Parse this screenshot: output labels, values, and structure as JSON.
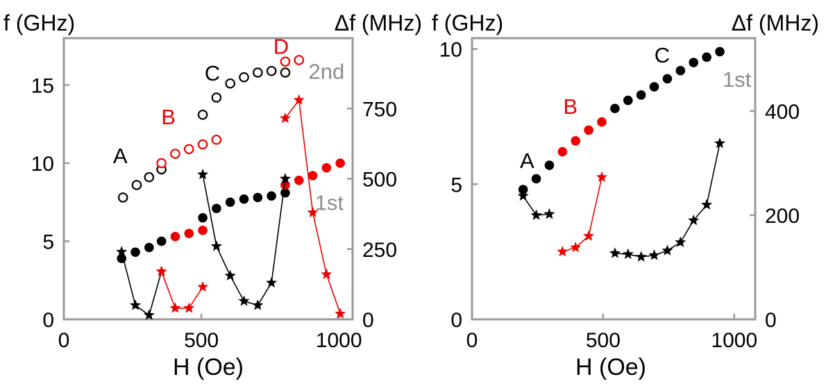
{
  "chart_data": [
    {
      "type": "scatter",
      "title": "",
      "xlabel": "H (Oe)",
      "ylabel_left": "f (GHz)",
      "ylabel_right": "Δf (MHz)",
      "xlim": [
        0,
        1050
      ],
      "ylim_left": [
        0,
        18
      ],
      "ylim_right": [
        0,
        1000
      ],
      "x_ticks": [
        0,
        500,
        1000
      ],
      "y_ticks_left": [
        0,
        5,
        10,
        15
      ],
      "y_ticks_right": [
        0,
        250,
        500,
        750
      ],
      "grid": false,
      "annotations": [
        {
          "text": "A",
          "x": 205,
          "y": 10.0,
          "color": "#000000",
          "axis": "left"
        },
        {
          "text": "B",
          "x": 380,
          "y": 12.5,
          "color": "#ee0000",
          "axis": "left"
        },
        {
          "text": "C",
          "x": 540,
          "y": 15.3,
          "color": "#000000",
          "axis": "left"
        },
        {
          "text": "D",
          "x": 790,
          "y": 17.0,
          "color": "#ee0000",
          "axis": "left"
        },
        {
          "text": "2nd",
          "x": 955,
          "y": 15.4,
          "color": "#8c8c8c",
          "axis": "left"
        },
        {
          "text": "1st",
          "x": 965,
          "y": 7.0,
          "color": "#8c8c8c",
          "axis": "left"
        }
      ],
      "series": [
        {
          "axis": "left",
          "marker": "circle-open",
          "color": "#000000",
          "x": [
            215,
            265,
            310,
            355
          ],
          "y": [
            7.8,
            8.6,
            9.1,
            9.6
          ]
        },
        {
          "axis": "left",
          "marker": "circle-open",
          "color": "#ee0000",
          "x": [
            355,
            405,
            455,
            505,
            555
          ],
          "y": [
            10.0,
            10.6,
            10.9,
            11.2,
            11.5
          ]
        },
        {
          "axis": "left",
          "marker": "circle-open",
          "color": "#000000",
          "x": [
            505,
            555,
            605,
            655,
            705,
            755,
            805
          ],
          "y": [
            13.1,
            14.2,
            15.1,
            15.5,
            15.8,
            15.9,
            15.8
          ]
        },
        {
          "axis": "left",
          "marker": "circle-open",
          "color": "#ee0000",
          "x": [
            805,
            855
          ],
          "y": [
            16.5,
            16.6
          ]
        },
        {
          "axis": "left",
          "marker": "circle-filled",
          "color": "#000000",
          "x": [
            210,
            260,
            310,
            355
          ],
          "y": [
            3.9,
            4.3,
            4.6,
            5.0
          ]
        },
        {
          "axis": "left",
          "marker": "circle-filled",
          "color": "#ee0000",
          "x": [
            405,
            455,
            505
          ],
          "y": [
            5.3,
            5.5,
            5.7
          ]
        },
        {
          "axis": "left",
          "marker": "circle-filled",
          "color": "#000000",
          "x": [
            505,
            555,
            605,
            655,
            705,
            755,
            805
          ],
          "y": [
            6.5,
            7.1,
            7.5,
            7.7,
            7.8,
            7.9,
            8.1
          ]
        },
        {
          "axis": "left",
          "marker": "circle-filled",
          "color": "#ee0000",
          "x": [
            805,
            855,
            905,
            955,
            1005
          ],
          "y": [
            8.6,
            8.9,
            9.2,
            9.7,
            10.0
          ]
        },
        {
          "axis": "right",
          "marker": "star-line",
          "color": "#000000",
          "x": [
            210,
            260,
            310,
            355
          ],
          "y": [
            240,
            50,
            15,
            170
          ]
        },
        {
          "axis": "right",
          "marker": "star-line",
          "color": "#ee0000",
          "x": [
            355,
            405,
            455,
            505
          ],
          "y": [
            170,
            40,
            40,
            115
          ]
        },
        {
          "axis": "right",
          "marker": "star-line",
          "color": "#000000",
          "x": [
            505,
            555,
            605,
            655,
            705,
            755,
            805
          ],
          "y": [
            515,
            260,
            155,
            65,
            50,
            130,
            500
          ]
        },
        {
          "axis": "right",
          "marker": "star-line",
          "color": "#ee0000",
          "x": [
            805,
            855,
            905,
            955,
            1005
          ],
          "y": [
            715,
            780,
            380,
            160,
            20
          ]
        }
      ]
    },
    {
      "type": "scatter",
      "title": "",
      "xlabel": "H (Oe)",
      "ylabel_left": "f (GHz)",
      "ylabel_right": "Δf (MHz)",
      "xlim": [
        0,
        1080
      ],
      "ylim_left": [
        0,
        10.4
      ],
      "ylim_right": [
        0,
        540
      ],
      "x_ticks": [
        0,
        500,
        1000
      ],
      "y_ticks_left": [
        0,
        5,
        10
      ],
      "y_ticks_right": [
        0,
        200,
        400
      ],
      "grid": false,
      "annotations": [
        {
          "text": "A",
          "x": 210,
          "y": 5.6,
          "color": "#000000",
          "axis": "left"
        },
        {
          "text": "B",
          "x": 375,
          "y": 7.6,
          "color": "#ee0000",
          "axis": "left"
        },
        {
          "text": "C",
          "x": 725,
          "y": 9.5,
          "color": "#000000",
          "axis": "left"
        },
        {
          "text": "1st",
          "x": 1010,
          "y": 8.6,
          "color": "#8c8c8c",
          "axis": "left"
        }
      ],
      "series": [
        {
          "axis": "left",
          "marker": "circle-filled",
          "color": "#000000",
          "x": [
            195,
            245,
            295
          ],
          "y": [
            4.8,
            5.2,
            5.7
          ]
        },
        {
          "axis": "left",
          "marker": "circle-filled",
          "color": "#ee0000",
          "x": [
            345,
            395,
            445,
            495
          ],
          "y": [
            6.2,
            6.6,
            7.0,
            7.3
          ]
        },
        {
          "axis": "left",
          "marker": "circle-filled",
          "color": "#000000",
          "x": [
            545,
            595,
            645,
            695,
            745,
            795,
            845,
            895,
            945
          ],
          "y": [
            7.8,
            8.1,
            8.3,
            8.6,
            8.9,
            9.2,
            9.5,
            9.7,
            9.9
          ]
        },
        {
          "axis": "right",
          "marker": "star-line",
          "color": "#000000",
          "x": [
            195,
            245,
            295
          ],
          "y": [
            237,
            200,
            202
          ]
        },
        {
          "axis": "right",
          "marker": "star-line",
          "color": "#ee0000",
          "x": [
            345,
            395,
            445,
            495
          ],
          "y": [
            130,
            138,
            160,
            273
          ]
        },
        {
          "axis": "right",
          "marker": "star-line",
          "color": "#000000",
          "x": [
            545,
            595,
            645,
            695,
            745,
            795,
            845,
            895,
            945
          ],
          "y": [
            127,
            125,
            120,
            123,
            132,
            148,
            190,
            220,
            338
          ]
        }
      ]
    }
  ]
}
